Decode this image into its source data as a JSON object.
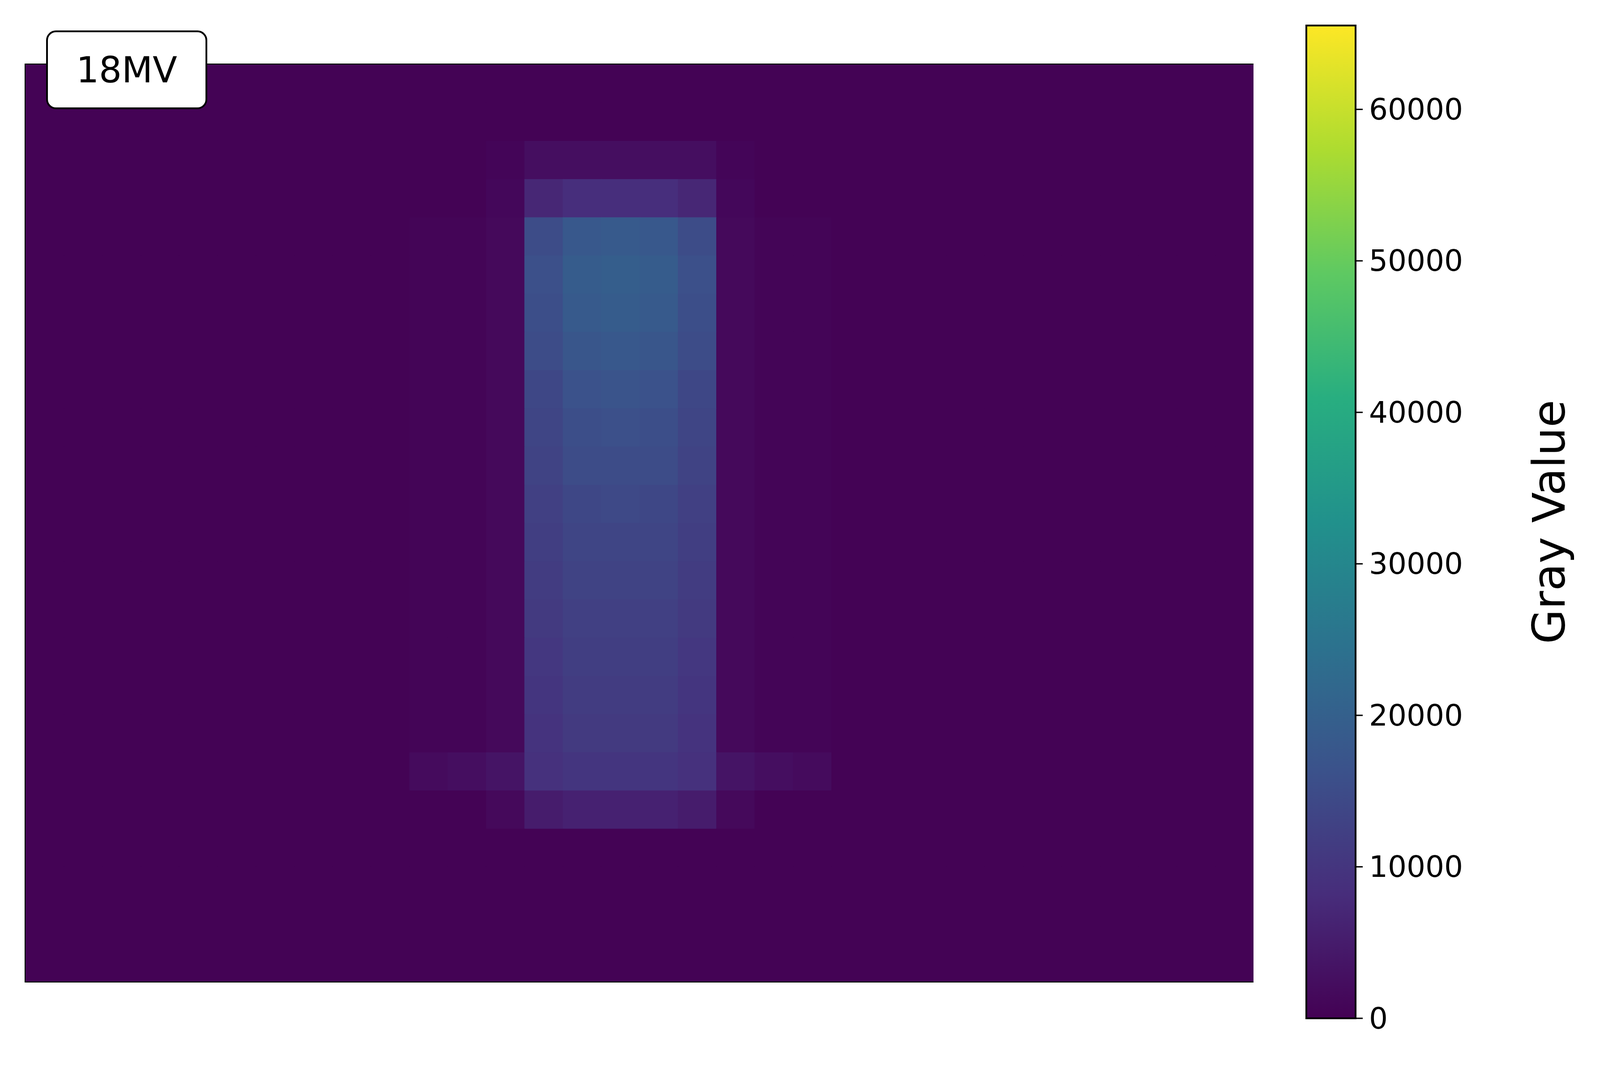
{
  "chart_data": {
    "type": "heatmap",
    "annotation": "18MV",
    "tick_labels": false,
    "cells": [
      [
        300,
        300,
        300,
        300,
        300,
        300,
        300,
        300,
        300,
        300,
        300,
        300,
        300,
        300,
        300,
        300,
        300,
        300,
        300,
        300,
        300,
        300,
        300,
        300,
        300,
        300,
        300,
        300,
        300,
        300,
        300,
        300
      ],
      [
        300,
        300,
        300,
        300,
        300,
        300,
        300,
        300,
        300,
        300,
        300,
        300,
        300,
        300,
        300,
        300,
        300,
        300,
        300,
        300,
        300,
        300,
        300,
        300,
        300,
        300,
        300,
        300,
        300,
        300,
        300,
        300
      ],
      [
        300,
        300,
        300,
        300,
        300,
        300,
        300,
        300,
        300,
        300,
        300,
        300,
        800,
        2500,
        2500,
        2500,
        2500,
        2500,
        800,
        300,
        300,
        300,
        300,
        300,
        300,
        300,
        300,
        300,
        300,
        300,
        300,
        300
      ],
      [
        300,
        300,
        300,
        300,
        300,
        300,
        300,
        300,
        300,
        300,
        300,
        300,
        1200,
        7000,
        8500,
        8500,
        8500,
        7000,
        1200,
        300,
        300,
        300,
        300,
        300,
        300,
        300,
        300,
        300,
        300,
        300,
        300,
        300
      ],
      [
        300,
        300,
        300,
        300,
        300,
        300,
        300,
        300,
        300,
        300,
        700,
        700,
        1500,
        15000,
        18000,
        18500,
        18000,
        15000,
        1500,
        700,
        700,
        300,
        300,
        300,
        300,
        300,
        300,
        300,
        300,
        300,
        300,
        300
      ],
      [
        300,
        300,
        300,
        300,
        300,
        300,
        300,
        300,
        300,
        300,
        700,
        700,
        1500,
        16000,
        19000,
        19500,
        19000,
        16000,
        1500,
        700,
        700,
        300,
        300,
        300,
        300,
        300,
        300,
        300,
        300,
        300,
        300,
        300
      ],
      [
        300,
        300,
        300,
        300,
        300,
        300,
        300,
        300,
        300,
        300,
        700,
        700,
        1500,
        15500,
        18500,
        19000,
        18500,
        15500,
        1500,
        700,
        700,
        300,
        300,
        300,
        300,
        300,
        300,
        300,
        300,
        300,
        300,
        300
      ],
      [
        300,
        300,
        300,
        300,
        300,
        300,
        300,
        300,
        300,
        300,
        700,
        700,
        1500,
        15000,
        17500,
        18000,
        17500,
        15000,
        1500,
        700,
        700,
        300,
        300,
        300,
        300,
        300,
        300,
        300,
        300,
        300,
        300,
        300
      ],
      [
        300,
        300,
        300,
        300,
        300,
        300,
        300,
        300,
        300,
        300,
        700,
        700,
        1500,
        14000,
        16500,
        17000,
        16500,
        14000,
        1500,
        700,
        700,
        300,
        300,
        300,
        300,
        300,
        300,
        300,
        300,
        300,
        300,
        300
      ],
      [
        300,
        300,
        300,
        300,
        300,
        300,
        300,
        300,
        300,
        300,
        700,
        700,
        1500,
        13500,
        15500,
        16000,
        15500,
        13500,
        1500,
        700,
        700,
        300,
        300,
        300,
        300,
        300,
        300,
        300,
        300,
        300,
        300,
        300
      ],
      [
        300,
        300,
        300,
        300,
        300,
        300,
        300,
        300,
        300,
        300,
        700,
        700,
        1500,
        13000,
        15000,
        15000,
        15000,
        13000,
        1500,
        700,
        700,
        300,
        300,
        300,
        300,
        300,
        300,
        300,
        300,
        300,
        300,
        300
      ],
      [
        300,
        300,
        300,
        300,
        300,
        300,
        300,
        300,
        300,
        300,
        700,
        700,
        1500,
        12500,
        14000,
        14500,
        14000,
        12500,
        1500,
        700,
        700,
        300,
        300,
        300,
        300,
        300,
        300,
        300,
        300,
        300,
        300,
        300
      ],
      [
        300,
        300,
        300,
        300,
        300,
        300,
        300,
        300,
        300,
        300,
        700,
        700,
        1500,
        12000,
        13500,
        13500,
        13500,
        12000,
        1500,
        700,
        700,
        300,
        300,
        300,
        300,
        300,
        300,
        300,
        300,
        300,
        300,
        300
      ],
      [
        300,
        300,
        300,
        300,
        300,
        300,
        300,
        300,
        300,
        300,
        700,
        700,
        1500,
        11500,
        13000,
        13000,
        13000,
        11500,
        1500,
        700,
        700,
        300,
        300,
        300,
        300,
        300,
        300,
        300,
        300,
        300,
        300,
        300
      ],
      [
        300,
        300,
        300,
        300,
        300,
        300,
        300,
        300,
        300,
        300,
        700,
        700,
        1500,
        11000,
        12500,
        12500,
        12500,
        11000,
        1500,
        700,
        700,
        300,
        300,
        300,
        300,
        300,
        300,
        300,
        300,
        300,
        300,
        300
      ],
      [
        300,
        300,
        300,
        300,
        300,
        300,
        300,
        300,
        300,
        300,
        700,
        700,
        1500,
        10500,
        12000,
        12000,
        12000,
        10500,
        1500,
        700,
        700,
        300,
        300,
        300,
        300,
        300,
        300,
        300,
        300,
        300,
        300,
        300
      ],
      [
        300,
        300,
        300,
        300,
        300,
        300,
        300,
        300,
        300,
        300,
        700,
        700,
        1500,
        10000,
        11500,
        11500,
        11500,
        10000,
        1500,
        700,
        700,
        300,
        300,
        300,
        300,
        300,
        300,
        300,
        300,
        300,
        300,
        300
      ],
      [
        300,
        300,
        300,
        300,
        300,
        300,
        300,
        300,
        300,
        300,
        700,
        700,
        1500,
        9500,
        11000,
        11000,
        11000,
        9500,
        1500,
        700,
        700,
        300,
        300,
        300,
        300,
        300,
        300,
        300,
        300,
        300,
        300,
        300
      ],
      [
        300,
        300,
        300,
        300,
        300,
        300,
        300,
        300,
        300,
        300,
        1800,
        2500,
        3500,
        9000,
        10000,
        10000,
        10000,
        9000,
        3500,
        2500,
        1800,
        300,
        300,
        300,
        300,
        300,
        300,
        300,
        300,
        300,
        300,
        300
      ],
      [
        300,
        300,
        300,
        300,
        300,
        300,
        300,
        300,
        300,
        300,
        300,
        300,
        1500,
        5000,
        6000,
        6000,
        6000,
        5000,
        1500,
        300,
        300,
        300,
        300,
        300,
        300,
        300,
        300,
        300,
        300,
        300,
        300,
        300
      ],
      [
        300,
        300,
        300,
        300,
        300,
        300,
        300,
        300,
        300,
        300,
        300,
        300,
        300,
        300,
        300,
        300,
        300,
        300,
        300,
        300,
        300,
        300,
        300,
        300,
        300,
        300,
        300,
        300,
        300,
        300,
        300,
        300
      ],
      [
        300,
        300,
        300,
        300,
        300,
        300,
        300,
        300,
        300,
        300,
        300,
        300,
        300,
        300,
        300,
        300,
        300,
        300,
        300,
        300,
        300,
        300,
        300,
        300,
        300,
        300,
        300,
        300,
        300,
        300,
        300,
        300
      ],
      [
        300,
        300,
        300,
        300,
        300,
        300,
        300,
        300,
        300,
        300,
        300,
        300,
        300,
        300,
        300,
        300,
        300,
        300,
        300,
        300,
        300,
        300,
        300,
        300,
        300,
        300,
        300,
        300,
        300,
        300,
        300,
        300
      ],
      [
        300,
        300,
        300,
        300,
        300,
        300,
        300,
        300,
        300,
        300,
        300,
        300,
        300,
        300,
        300,
        300,
        300,
        300,
        300,
        300,
        300,
        300,
        300,
        300,
        300,
        300,
        300,
        300,
        300,
        300,
        300,
        300
      ]
    ],
    "colorbar": {
      "label": "Gray Value",
      "range": [
        0,
        65535
      ],
      "ticks": [
        0,
        10000,
        20000,
        30000,
        40000,
        50000,
        60000
      ]
    }
  }
}
